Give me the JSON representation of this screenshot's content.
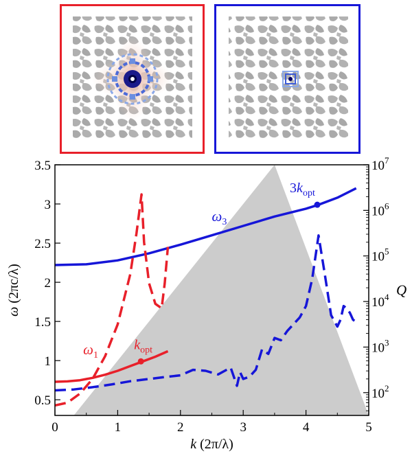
{
  "insets": [
    {
      "name": "red-mode-inset",
      "frame_color": "#e8202a"
    },
    {
      "name": "blue-mode-inset",
      "frame_color": "#1616d8"
    }
  ],
  "chart_data": {
    "type": "line",
    "title": "",
    "xlabel": "k (2π/λ)",
    "ylabel_left": "ω (2πc/λ)",
    "ylabel_right": "Q",
    "xlim": [
      0,
      5
    ],
    "ylim_left": [
      0.3,
      3.5
    ],
    "ylim_right_log10": [
      1.5,
      7
    ],
    "right_axis_scale": "log",
    "x_ticks": [
      "0",
      "1",
      "2",
      "3",
      "4",
      "5"
    ],
    "y_ticks_left": [
      "0.5",
      "1",
      "1.5",
      "2",
      "2.5",
      "3",
      "3.5"
    ],
    "y_ticks_right": [
      {
        "base": "10",
        "exp": "2",
        "value": 2
      },
      {
        "base": "10",
        "exp": "3",
        "value": 3
      },
      {
        "base": "10",
        "exp": "4",
        "value": 4
      },
      {
        "base": "10",
        "exp": "5",
        "value": 5
      },
      {
        "base": "10",
        "exp": "6",
        "value": 6
      },
      {
        "base": "10",
        "exp": "7",
        "value": 7
      }
    ],
    "light_cone": {
      "label": "",
      "description": "shaded region ω < k",
      "color": "#cccccc"
    },
    "series": [
      {
        "axis": "left",
        "style": "solid",
        "color": "#e8202a",
        "x": [
          0,
          0.2,
          0.4,
          0.6,
          0.8,
          1.0,
          1.2,
          1.4,
          1.6,
          1.8
        ],
        "y": [
          0.73,
          0.735,
          0.75,
          0.78,
          0.82,
          0.87,
          0.93,
          0.99,
          1.05,
          1.12
        ]
      },
      {
        "axis": "left",
        "style": "solid",
        "color": "#1616d8",
        "x": [
          0,
          0.5,
          1.0,
          1.5,
          2.0,
          2.5,
          3.0,
          3.5,
          4.0,
          4.2,
          4.5,
          4.8
        ],
        "y": [
          2.22,
          2.23,
          2.28,
          2.37,
          2.48,
          2.6,
          2.72,
          2.84,
          2.94,
          2.99,
          3.08,
          3.2
        ]
      },
      {
        "axis": "right",
        "style": "dashed",
        "color": "#e8202a",
        "x": [
          0,
          0.2,
          0.4,
          0.6,
          0.8,
          1.0,
          1.2,
          1.3,
          1.38,
          1.42,
          1.5,
          1.6,
          1.7,
          1.75,
          1.8
        ],
        "y": [
          1.72,
          1.78,
          1.98,
          2.3,
          2.8,
          3.5,
          4.6,
          5.5,
          6.35,
          5.3,
          4.4,
          3.95,
          3.85,
          4.4,
          5.2
        ]
      },
      {
        "axis": "right",
        "style": "dashed",
        "color": "#1616d8",
        "x": [
          0,
          0.3,
          0.6,
          0.9,
          1.2,
          1.5,
          1.8,
          2.0,
          2.2,
          2.4,
          2.6,
          2.8,
          2.9,
          2.95,
          3.0,
          3.1,
          3.2,
          3.3,
          3.4,
          3.5,
          3.6,
          3.7,
          3.8,
          3.9,
          4.0,
          4.1,
          4.2,
          4.3,
          4.4,
          4.5,
          4.55,
          4.6,
          4.65,
          4.7,
          4.75,
          4.8
        ],
        "y": [
          2.05,
          2.07,
          2.12,
          2.18,
          2.25,
          2.3,
          2.35,
          2.38,
          2.5,
          2.48,
          2.4,
          2.55,
          2.15,
          2.45,
          2.3,
          2.35,
          2.5,
          2.95,
          2.85,
          3.2,
          3.15,
          3.35,
          3.5,
          3.65,
          3.9,
          4.5,
          5.45,
          4.6,
          3.7,
          3.45,
          3.6,
          3.9,
          3.85,
          3.75,
          3.6,
          3.55
        ]
      }
    ],
    "points": [
      {
        "x": 1.37,
        "y": 0.99,
        "color": "#e8202a",
        "label": "k",
        "label_sub": "opt"
      },
      {
        "x": 4.18,
        "y": 2.99,
        "color": "#1616d8",
        "label": "3k",
        "label_sub": "opt"
      }
    ],
    "curve_labels": [
      {
        "text": "ω",
        "sub": "1",
        "color": "#e8202a",
        "at": [
          0.45,
          1.08
        ]
      },
      {
        "text": "ω",
        "sub": "3",
        "color": "#1616d8",
        "at": [
          2.5,
          2.78
        ]
      }
    ]
  }
}
